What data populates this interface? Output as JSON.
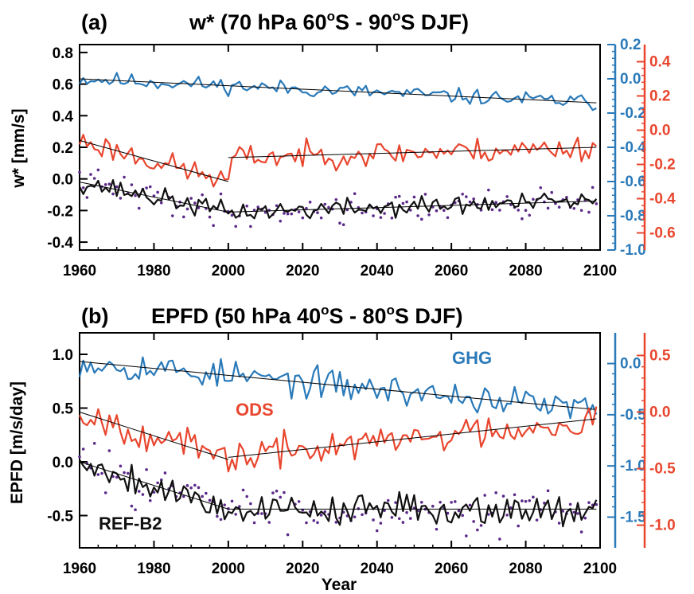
{
  "colors": {
    "ghg": "#2a7ab9",
    "ods": "#e8462e",
    "ref": "#111111",
    "dots": "#5c2a8a"
  },
  "chart_data": [
    {
      "type": "line",
      "panel_label": "(a)",
      "title": "w* (70 hPa 60°S - 90°S DJF)",
      "title_parts": {
        "pre": "w* (70 hPa 60",
        "deg1": "o",
        "mid": "S - 90",
        "deg2": "o",
        "post": "S DJF)"
      },
      "xlabel": "",
      "ylabel": "w* [mm/s]",
      "xlim": [
        1960,
        2100
      ],
      "xticks": [
        "1960",
        "1980",
        "2000",
        "2020",
        "2040",
        "2060",
        "2080",
        "2100"
      ],
      "left_axis": {
        "ylim": [
          -0.45,
          0.85
        ],
        "ticks": [
          "-0.4",
          "-0.2",
          "0.0",
          "0.2",
          "0.4",
          "0.6",
          "0.8"
        ]
      },
      "right_axis_ghg": {
        "ylim": [
          -1.0,
          0.2
        ],
        "ticks": [
          "-1.0",
          "-0.8",
          "-0.6",
          "-0.4",
          "-0.2",
          "0.0",
          "0.2"
        ]
      },
      "right_axis_ods": {
        "ylim": [
          -0.7,
          0.5
        ],
        "ticks": [
          "-0.6",
          "-0.4",
          "-0.2",
          "0.0",
          "0.2",
          "0.4"
        ]
      },
      "series": [
        {
          "name": "GHG",
          "axis": "right_ghg",
          "start": 0.0,
          "end": -0.14,
          "break": null,
          "noise": 0.025,
          "seed": 11
        },
        {
          "name": "ODS",
          "axis": "right_ods",
          "start": -0.06,
          "end": -0.1,
          "break": [
            2000,
            -0.3,
            -0.16
          ],
          "noise": 0.04,
          "seed": 23
        },
        {
          "name": "REF-B2",
          "axis": "left",
          "start": -0.02,
          "end": -0.14,
          "break": [
            2000,
            -0.21,
            -0.21
          ],
          "noise": 0.035,
          "seed": 37
        }
      ],
      "scatter": {
        "axis": "left",
        "mean_offset": 0.0,
        "spread": 0.06,
        "seed": 41
      }
    },
    {
      "type": "line",
      "panel_label": "(b)",
      "title": "EPFD (50 hPa 40°S - 80°S DJF)",
      "title_parts": {
        "pre": "EPFD (50 hPa 40",
        "deg1": "o",
        "mid": "S - 80",
        "deg2": "o",
        "post": "S DJF)"
      },
      "xlabel": "Year",
      "ylabel": "EPFD [m/s/day]",
      "xlim": [
        1960,
        2100
      ],
      "xticks": [
        "1960",
        "1980",
        "2000",
        "2020",
        "2040",
        "2060",
        "2080",
        "2100"
      ],
      "left_axis": {
        "ylim": [
          -0.8,
          1.2
        ],
        "ticks": [
          "-0.5",
          "0.0",
          "0.5",
          "1.0"
        ]
      },
      "right_axis_ghg": {
        "ylim": [
          -1.8,
          0.3
        ],
        "ticks": [
          "-1.5",
          "-1.0",
          "-0.5",
          "0.0"
        ]
      },
      "right_axis_ods": {
        "ylim": [
          -1.2,
          0.7
        ],
        "ticks": [
          "-1.0",
          "-0.5",
          "0.0",
          "0.5"
        ]
      },
      "series": [
        {
          "name": "GHG",
          "axis": "right_ghg",
          "start": 0.02,
          "end": -0.45,
          "break": null,
          "noise": 0.08,
          "seed": 53
        },
        {
          "name": "ODS",
          "axis": "right_ods",
          "start": 0.0,
          "end": -0.06,
          "break": [
            2000,
            -0.42,
            -0.4
          ],
          "noise": 0.08,
          "seed": 67
        },
        {
          "name": "REF-B2",
          "axis": "left",
          "start": 0.0,
          "end": -0.44,
          "break": [
            2000,
            -0.44,
            -0.44
          ],
          "noise": 0.08,
          "seed": 79
        }
      ],
      "scatter": {
        "axis": "left",
        "mean_offset": 0.0,
        "spread": 0.13,
        "seed": 83
      }
    }
  ],
  "legend_labels": {
    "ghg": "GHG",
    "ods": "ODS",
    "ref": "REF-B2"
  }
}
